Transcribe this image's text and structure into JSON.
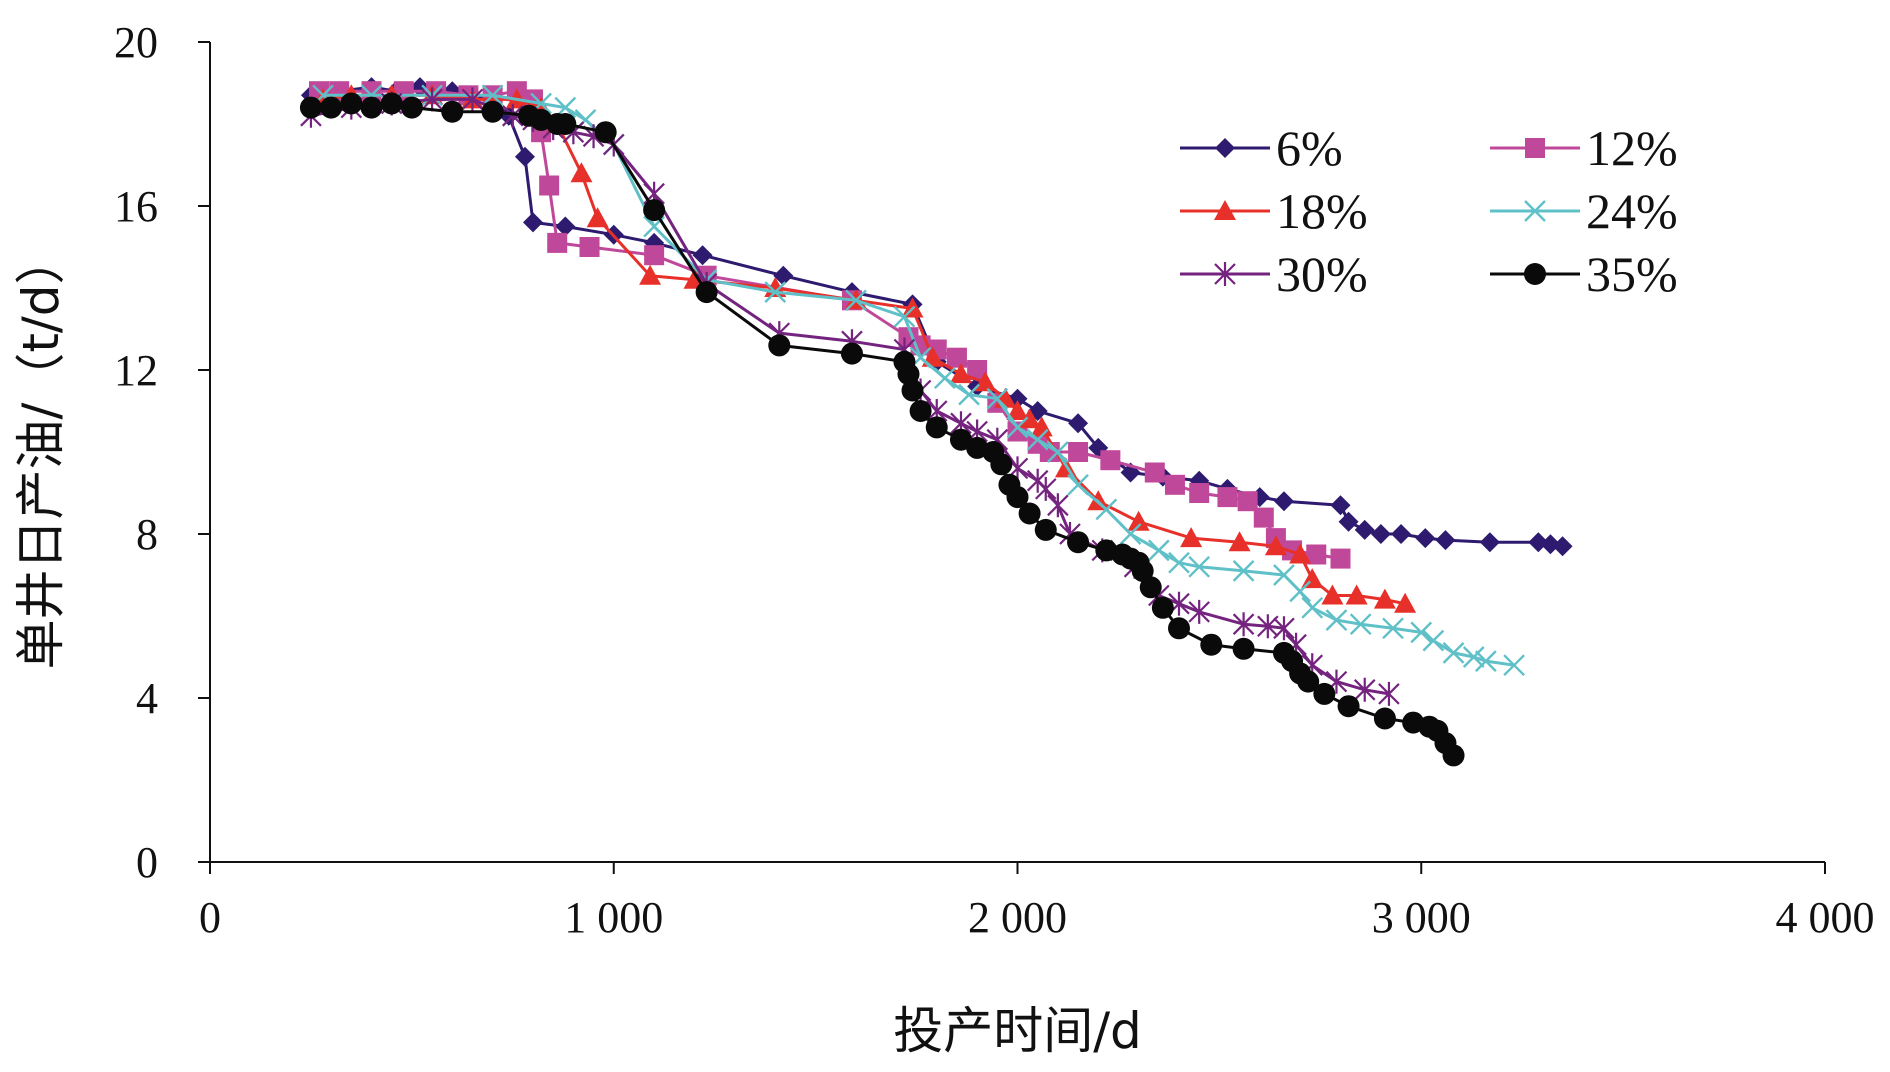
{
  "chart_data": {
    "type": "line",
    "xlabel": "投产时间/d",
    "ylabel": "单井日产油/（t/d）",
    "xlim": [
      0,
      4000
    ],
    "ylim": [
      0,
      20
    ],
    "x_ticks": [
      0,
      1000,
      2000,
      3000,
      4000
    ],
    "x_tick_labels": [
      "0",
      "1 000",
      "2 000",
      "3 000",
      "4 000"
    ],
    "y_ticks": [
      0,
      4,
      8,
      12,
      16,
      20
    ],
    "y_tick_labels": [
      "0",
      "4",
      "8",
      "12",
      "16",
      "20"
    ],
    "grid": false,
    "legend_position": "top-right",
    "series": [
      {
        "name": "6%",
        "color": "#2e1a6e",
        "marker": "diamond",
        "x": [
          250,
          320,
          400,
          460,
          520,
          600,
          700,
          740,
          780,
          800,
          880,
          1000,
          1100,
          1220,
          1420,
          1590,
          1740,
          1800,
          1900,
          2000,
          2050,
          2150,
          2200,
          2280,
          2360,
          2450,
          2520,
          2600,
          2660,
          2800,
          2820,
          2860,
          2900,
          2950,
          3010,
          3060,
          3170,
          3290,
          3320,
          3350
        ],
        "y": [
          18.7,
          18.8,
          18.9,
          18.8,
          18.9,
          18.8,
          18.6,
          18.2,
          17.2,
          15.6,
          15.5,
          15.3,
          15.1,
          14.8,
          14.3,
          13.9,
          13.6,
          12.2,
          11.6,
          11.3,
          11.0,
          10.7,
          10.1,
          9.5,
          9.4,
          9.3,
          9.1,
          8.9,
          8.8,
          8.7,
          8.3,
          8.1,
          8.0,
          8.0,
          7.9,
          7.85,
          7.8,
          7.8,
          7.75,
          7.7
        ]
      },
      {
        "name": "12%",
        "color": "#c0489a",
        "marker": "square",
        "x": [
          270,
          320,
          400,
          480,
          560,
          640,
          700,
          760,
          800,
          820,
          840,
          860,
          940,
          1100,
          1230,
          1590,
          1730,
          1760,
          1800,
          1850,
          1900,
          1950,
          2000,
          2050,
          2080,
          2150,
          2230,
          2340,
          2390,
          2450,
          2520,
          2570,
          2610,
          2640,
          2680,
          2740,
          2800
        ],
        "y": [
          18.8,
          18.8,
          18.8,
          18.8,
          18.8,
          18.7,
          18.7,
          18.8,
          18.6,
          17.8,
          16.5,
          15.1,
          15.0,
          14.8,
          14.3,
          13.7,
          12.8,
          12.6,
          12.5,
          12.3,
          12.0,
          11.2,
          10.5,
          10.2,
          10.0,
          10.0,
          9.8,
          9.5,
          9.2,
          9.0,
          8.9,
          8.8,
          8.4,
          7.9,
          7.6,
          7.5,
          7.4
        ]
      },
      {
        "name": "18%",
        "color": "#e8302a",
        "marker": "triangle",
        "x": [
          280,
          350,
          450,
          550,
          650,
          760,
          820,
          860,
          920,
          960,
          1090,
          1200,
          1400,
          1600,
          1740,
          1790,
          1860,
          1920,
          1970,
          2000,
          2030,
          2060,
          2120,
          2200,
          2300,
          2430,
          2550,
          2640,
          2700,
          2730,
          2780,
          2840,
          2910,
          2960
        ],
        "y": [
          18.6,
          18.7,
          18.7,
          18.7,
          18.6,
          18.6,
          18.4,
          18.0,
          16.8,
          15.7,
          14.3,
          14.2,
          14.0,
          13.7,
          13.5,
          12.3,
          11.9,
          11.7,
          11.3,
          11.0,
          10.8,
          10.6,
          9.6,
          8.8,
          8.3,
          7.9,
          7.8,
          7.7,
          7.5,
          6.9,
          6.5,
          6.5,
          6.4,
          6.3
        ]
      },
      {
        "name": "24%",
        "color": "#5fc0c8",
        "marker": "x",
        "x": [
          280,
          400,
          550,
          700,
          820,
          880,
          930,
          1000,
          1100,
          1230,
          1400,
          1600,
          1720,
          1760,
          1820,
          1880,
          1950,
          2000,
          2050,
          2100,
          2150,
          2220,
          2280,
          2350,
          2400,
          2450,
          2560,
          2660,
          2700,
          2730,
          2790,
          2850,
          2930,
          3000,
          3030,
          3080,
          3130,
          3160,
          3230
        ],
        "y": [
          18.7,
          18.7,
          18.7,
          18.7,
          18.5,
          18.4,
          18.1,
          17.5,
          15.5,
          14.2,
          13.9,
          13.7,
          13.3,
          12.3,
          11.8,
          11.4,
          11.3,
          10.6,
          10.3,
          10.0,
          9.2,
          8.6,
          8.0,
          7.6,
          7.3,
          7.2,
          7.1,
          7.0,
          6.6,
          6.2,
          5.9,
          5.8,
          5.7,
          5.6,
          5.4,
          5.1,
          5.0,
          4.9,
          4.8
        ]
      },
      {
        "name": "30%",
        "color": "#74237e",
        "marker": "asterisk",
        "x": [
          250,
          350,
          450,
          550,
          650,
          750,
          800,
          850,
          900,
          950,
          1000,
          1100,
          1230,
          1410,
          1590,
          1720,
          1760,
          1800,
          1860,
          1900,
          1950,
          2000,
          2050,
          2070,
          2100,
          2130,
          2210,
          2290,
          2350,
          2400,
          2450,
          2560,
          2620,
          2660,
          2690,
          2730,
          2790,
          2860,
          2920
        ],
        "y": [
          18.2,
          18.4,
          18.5,
          18.6,
          18.6,
          18.2,
          18.1,
          17.9,
          17.8,
          17.7,
          17.5,
          16.3,
          14.1,
          12.9,
          12.7,
          12.5,
          11.5,
          11.0,
          10.7,
          10.5,
          10.3,
          9.6,
          9.3,
          9.1,
          8.7,
          8.0,
          7.6,
          7.2,
          6.5,
          6.3,
          6.1,
          5.8,
          5.75,
          5.7,
          5.3,
          4.8,
          4.4,
          4.2,
          4.1
        ]
      },
      {
        "name": "35%",
        "color": "#0a0a0a",
        "marker": "circle",
        "x": [
          250,
          300,
          350,
          400,
          450,
          500,
          600,
          700,
          790,
          820,
          860,
          880,
          980,
          1100,
          1230,
          1410,
          1590,
          1720,
          1730,
          1740,
          1760,
          1800,
          1860,
          1900,
          1940,
          1960,
          1980,
          2000,
          2030,
          2070,
          2150,
          2220,
          2260,
          2280,
          2300,
          2310,
          2330,
          2360,
          2400,
          2480,
          2560,
          2660,
          2680,
          2700,
          2720,
          2760,
          2820,
          2910,
          2980,
          3020,
          3040,
          3060,
          3080
        ],
        "y": [
          18.4,
          18.4,
          18.5,
          18.4,
          18.5,
          18.4,
          18.3,
          18.3,
          18.2,
          18.1,
          18.0,
          18.0,
          17.8,
          15.9,
          13.9,
          12.6,
          12.4,
          12.2,
          11.9,
          11.5,
          11.0,
          10.6,
          10.3,
          10.1,
          10.0,
          9.7,
          9.2,
          8.9,
          8.5,
          8.1,
          7.8,
          7.6,
          7.5,
          7.4,
          7.3,
          7.1,
          6.7,
          6.2,
          5.7,
          5.3,
          5.2,
          5.1,
          4.9,
          4.6,
          4.4,
          4.1,
          3.8,
          3.5,
          3.4,
          3.3,
          3.2,
          2.9,
          2.6
        ]
      }
    ]
  }
}
